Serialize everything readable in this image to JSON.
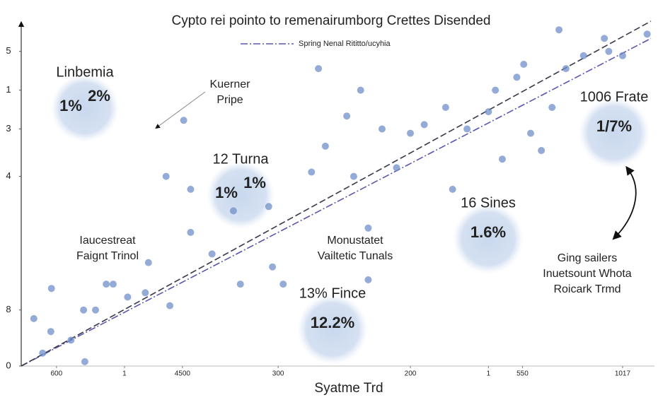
{
  "chart_data": {
    "type": "scatter",
    "title": "Cypto rei pointo to remenairumborg Crettes Disended",
    "x_label": "Syatme Trd",
    "xlim": [
      0,
      100
    ],
    "ylim": [
      0,
      8
    ],
    "xticks": [
      {
        "value": 5.6,
        "label": "600"
      },
      {
        "value": 16.4,
        "label": "1"
      },
      {
        "value": 25.6,
        "label": "4500"
      },
      {
        "value": 40.8,
        "label": "300"
      },
      {
        "value": 61.8,
        "label": "200"
      },
      {
        "value": 74.2,
        "label": "1"
      },
      {
        "value": 79.6,
        "label": "550"
      },
      {
        "value": 95.5,
        "label": "1017"
      }
    ],
    "yticks": [
      0,
      {
        "value": 1.3,
        "label": "8"
      },
      {
        "value": 4.4,
        "label": "4"
      },
      {
        "value": 5.5,
        "label": "3"
      },
      {
        "value": 6.4,
        "label": "1"
      },
      {
        "value": 7.3,
        "label": "5"
      }
    ],
    "series": [
      {
        "name": "Spring Nenal Rititto/ucyhia",
        "type": "line",
        "color": "#5a56b0",
        "x": [
          0,
          100
        ],
        "values": [
          0,
          7.6
        ]
      },
      {
        "type": "line",
        "color": "#3a3a4a",
        "x": [
          0,
          100
        ],
        "values": [
          0,
          8
        ]
      },
      {
        "type": "scatter",
        "color": "#6f8fc8",
        "x": [
          2.0,
          4.8,
          4.7,
          7.9,
          9.9,
          11.8,
          14.6,
          16.9,
          19.7,
          20.2,
          23.6,
          23,
          26.9,
          26.9,
          30.3,
          33.7,
          34.8,
          39.9,
          39.3,
          41.6,
          46.1,
          47.2,
          48.3,
          51.7,
          52.8,
          53.9,
          55.1,
          57.3,
          59.6,
          61.8,
          64,
          67.4,
          68.5,
          70.8,
          74.2,
          75.3,
          76.4,
          78.7,
          79.8,
          80.9,
          82.6,
          84.3,
          85.4,
          86.5,
          89.3,
          92.6,
          93.3,
          95.5,
          99.4,
          55.1,
          25.8,
          13.5,
          3.4,
          10.1
        ],
        "values": [
          1.1,
          1.8,
          0.8,
          0.6,
          1.3,
          1.3,
          1.9,
          1.6,
          1.7,
          2.4,
          1.4,
          4.4,
          3.1,
          4.1,
          2.6,
          3.6,
          1.9,
          2.3,
          3.7,
          1.9,
          4.5,
          6.9,
          5.1,
          5.8,
          4.4,
          6.4,
          3.2,
          5.5,
          4.6,
          5.4,
          5.6,
          6.0,
          4.1,
          5.5,
          5.9,
          6.4,
          4.8,
          6.7,
          7.0,
          5.4,
          5.0,
          6.0,
          7.8,
          6.9,
          7.2,
          7.6,
          7.3,
          7.2,
          7.7,
          2.0,
          5.7,
          1.9,
          0.3,
          0.1
        ]
      }
    ],
    "bubbles": [
      {
        "label": "Linbemia",
        "texts": [
          "1%",
          "2%"
        ]
      },
      {
        "label": "12 Turna",
        "texts": [
          "1%",
          "1%"
        ]
      },
      {
        "label": "1006 Frate",
        "texts": [
          "1/7%"
        ]
      },
      {
        "label": "16 Sines",
        "texts": [
          "1.6%"
        ]
      },
      {
        "label": "13% Fince",
        "texts": [
          "12.2%"
        ]
      }
    ],
    "notes": [
      {
        "lines": [
          "Kuerner",
          "Pripe"
        ]
      },
      {
        "lines": [
          "Iaucestreat",
          "Faignt Trinol"
        ]
      },
      {
        "lines": [
          "Monustatet",
          "Vailtetic Tunals"
        ]
      },
      {
        "lines": [
          "Ging sailers",
          "Inuetsount Whota",
          "Roicark Trmd"
        ]
      }
    ]
  }
}
